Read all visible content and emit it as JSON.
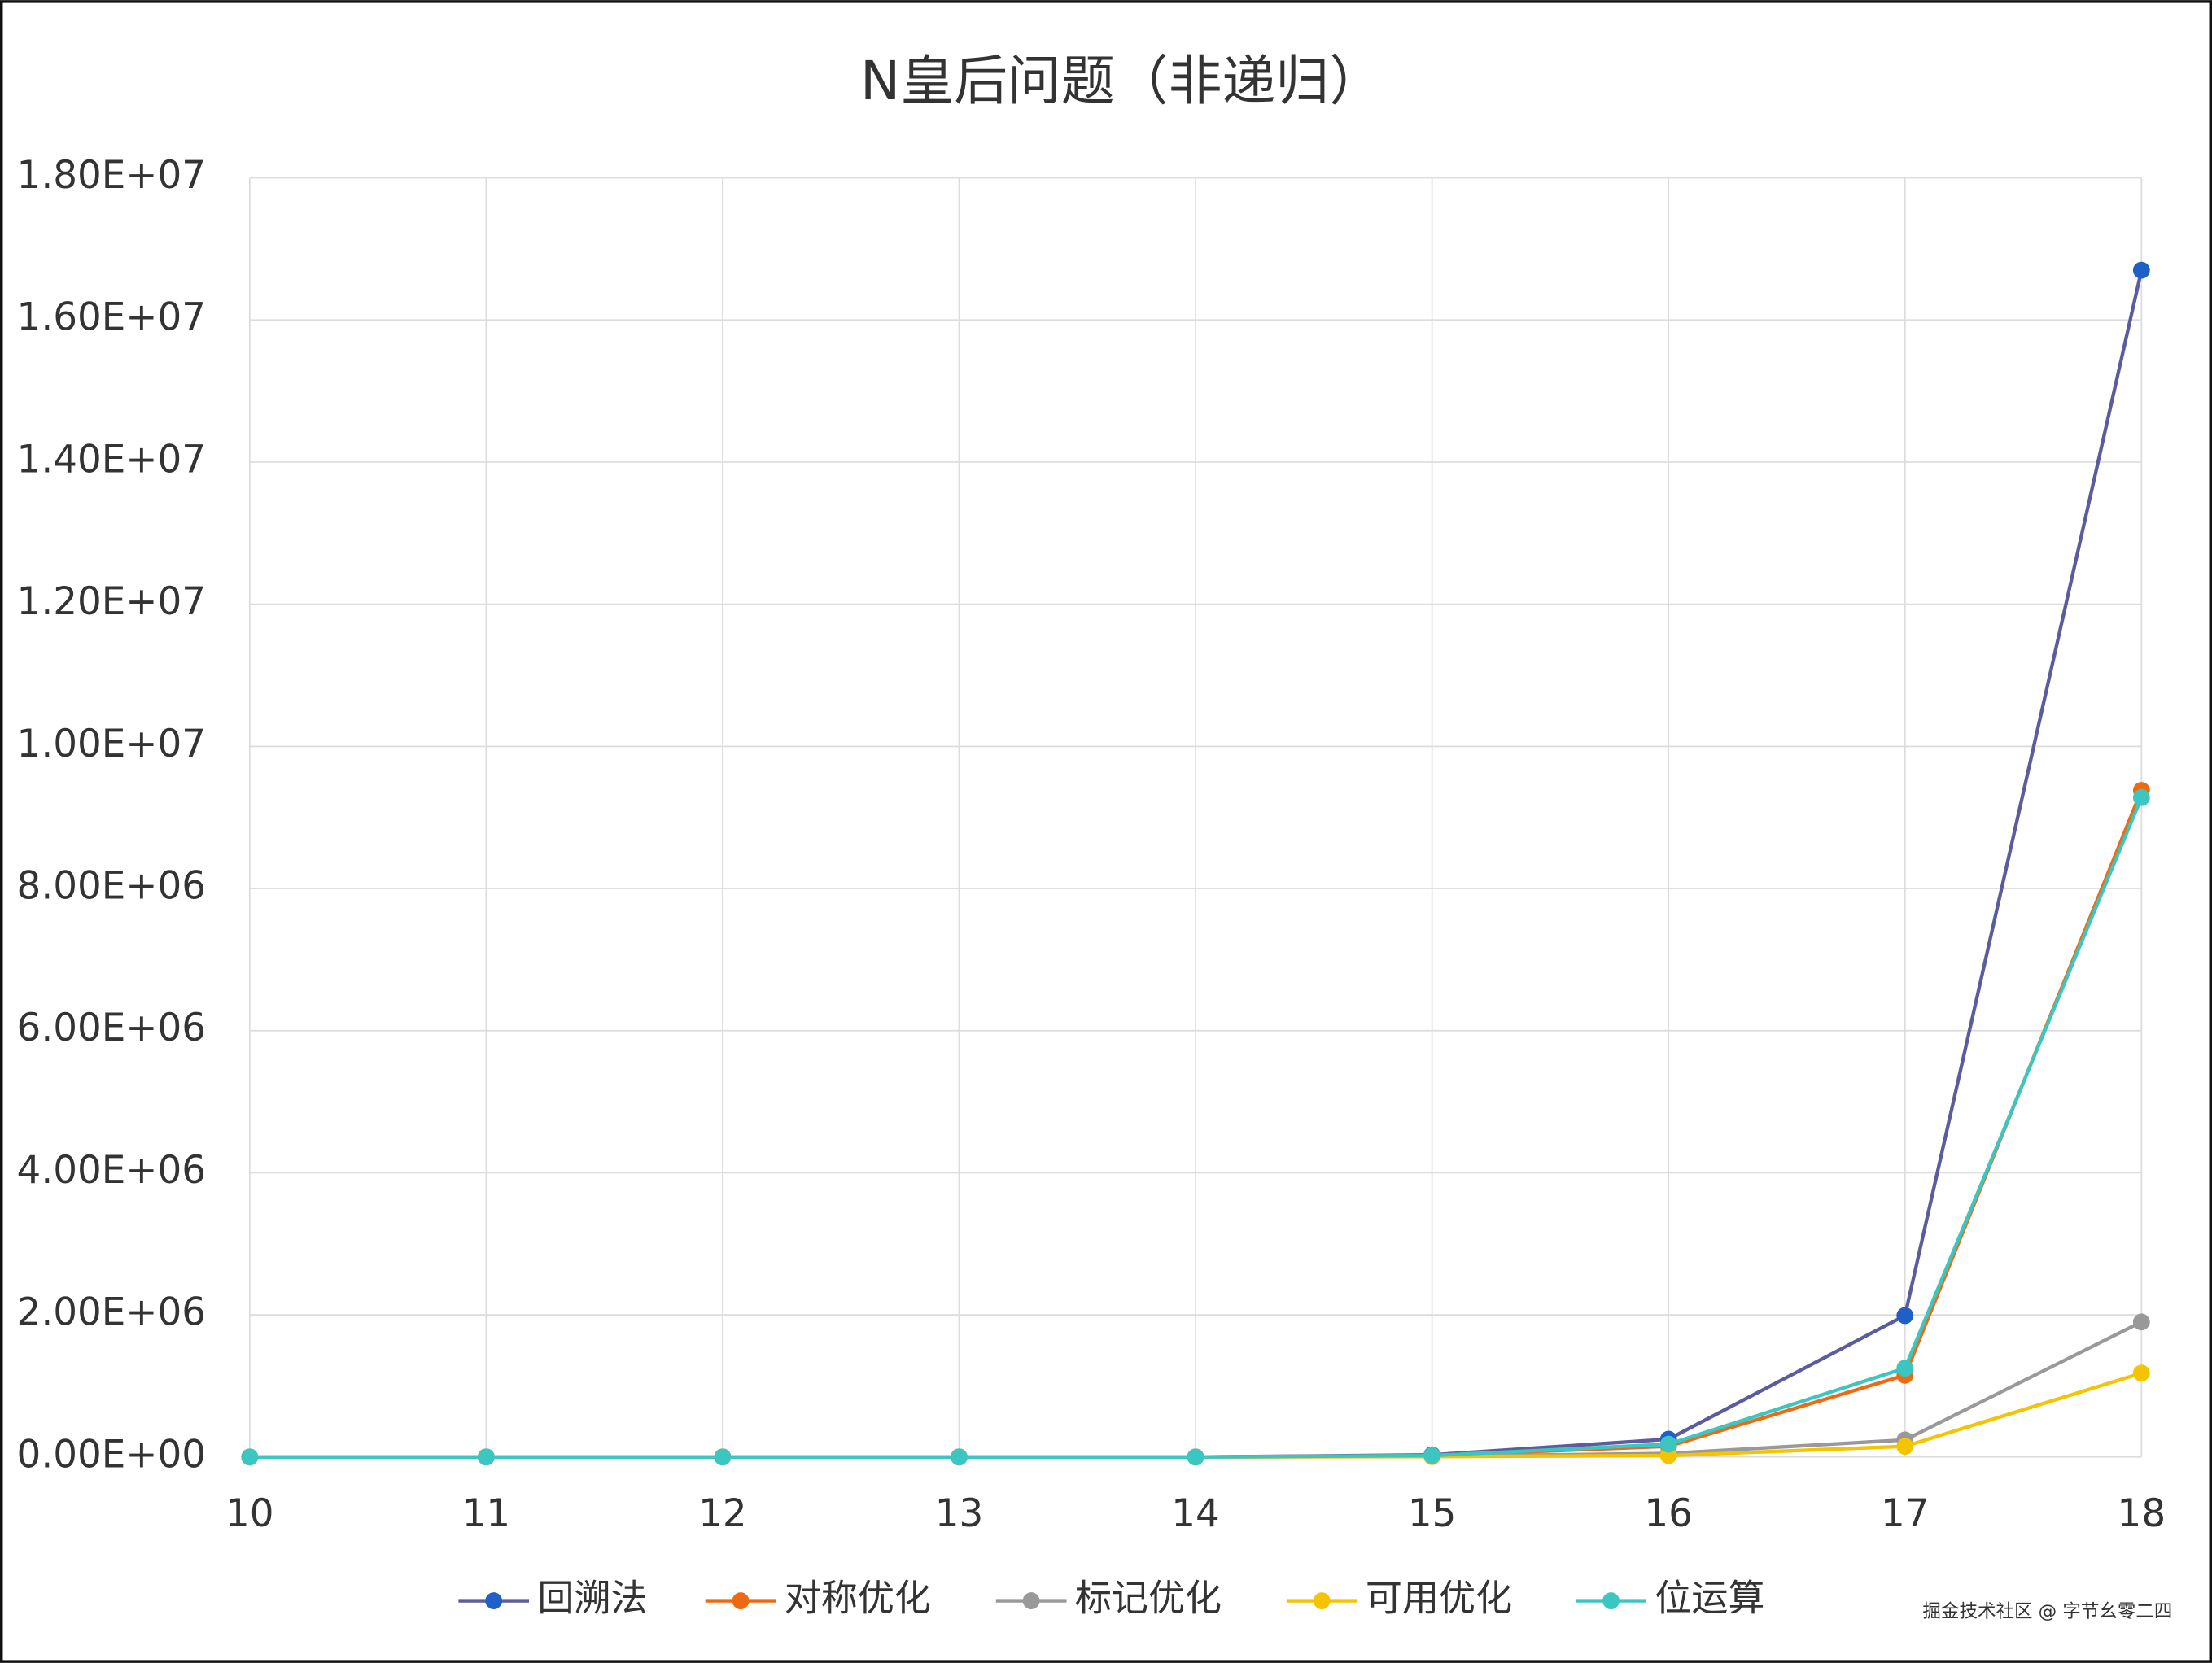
{
  "chart_data": {
    "type": "line",
    "title": "N皇后问题（非递归）",
    "x": [
      10,
      11,
      12,
      13,
      14,
      15,
      16,
      17,
      18
    ],
    "xlim": [
      10,
      18
    ],
    "xticks": [
      10,
      11,
      12,
      13,
      14,
      15,
      16,
      17,
      18
    ],
    "ylim": [
      0,
      18000000
    ],
    "yticks": [
      {
        "value": 0,
        "label": "0.00E+00"
      },
      {
        "value": 2000000,
        "label": "2.00E+06"
      },
      {
        "value": 4000000,
        "label": "4.00E+06"
      },
      {
        "value": 6000000,
        "label": "6.00E+06"
      },
      {
        "value": 8000000,
        "label": "8.00E+06"
      },
      {
        "value": 10000000,
        "label": "1.00E+07"
      },
      {
        "value": 12000000,
        "label": "1.20E+07"
      },
      {
        "value": 14000000,
        "label": "1.40E+07"
      },
      {
        "value": 16000000,
        "label": "1.60E+07"
      },
      {
        "value": 18000000,
        "label": "1.80E+07"
      }
    ],
    "grid": true,
    "legend": "bottom",
    "series": [
      {
        "name": "回溯法",
        "color": "#5b5c9e",
        "marker_color": "#1f5fc8",
        "values": [
          0,
          0,
          0,
          0,
          0,
          30000,
          250000,
          1990000,
          16700000
        ]
      },
      {
        "name": "对称优化",
        "color": "#ee6a10",
        "marker_color": "#ee6a10",
        "values": [
          0,
          0,
          0,
          0,
          0,
          20000,
          150000,
          1150000,
          9380000
        ]
      },
      {
        "name": "标记优化",
        "color": "#999999",
        "marker_color": "#999999",
        "values": [
          0,
          0,
          0,
          0,
          0,
          10000,
          50000,
          240000,
          1900000
        ]
      },
      {
        "name": "可用优化",
        "color": "#f5c400",
        "marker_color": "#f5c400",
        "values": [
          0,
          0,
          0,
          0,
          0,
          5000,
          20000,
          150000,
          1180000
        ]
      },
      {
        "name": "位运算",
        "color": "#3cc6c2",
        "marker_color": "#3cc6c2",
        "values": [
          0,
          0,
          0,
          0,
          0,
          20000,
          180000,
          1250000,
          9280000
        ]
      }
    ],
    "watermark": "掘金技术社区 @ 字节幺零二四"
  }
}
